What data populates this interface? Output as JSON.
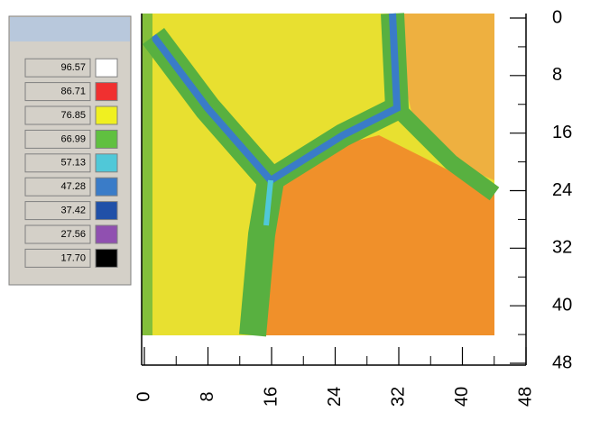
{
  "chart_data": {
    "type": "contour",
    "xlim": [
      0,
      48
    ],
    "xticks": [
      0,
      8,
      16,
      24,
      32,
      40,
      48
    ],
    "ylim": [
      0,
      48
    ],
    "yticks": [
      0,
      8,
      16,
      24,
      32,
      40,
      48
    ],
    "y_inverted": true,
    "colorbar": {
      "ticks": [
        96.57,
        86.71,
        76.85,
        66.99,
        57.13,
        47.28,
        37.42,
        27.56,
        {
          "value": 17.7,
          "label": "17.70"
        }
      ],
      "colors": [
        "#ffffff",
        "#f03030",
        "#f0f020",
        "#60c040",
        "#50c8d8",
        "#3a7cc8",
        "#2050a8",
        "#9050b0",
        "#000000"
      ]
    }
  }
}
